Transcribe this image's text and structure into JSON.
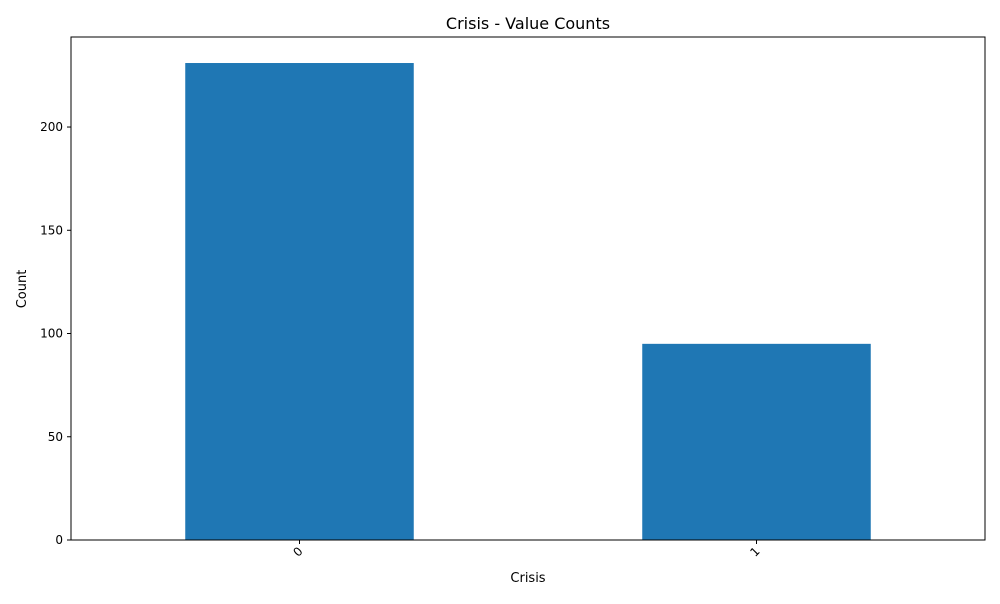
{
  "chart_data": {
    "type": "bar",
    "title": "Crisis - Value Counts",
    "xlabel": "Crisis",
    "ylabel": "Count",
    "categories": [
      "0",
      "1"
    ],
    "values": [
      231,
      95
    ],
    "ylim": [
      0,
      243.6
    ],
    "yticks": [
      0,
      50,
      100,
      150,
      200
    ],
    "grid": false,
    "legend": "none",
    "bar_color": "#1f77b4",
    "x_tick_rotation_deg": 45
  }
}
